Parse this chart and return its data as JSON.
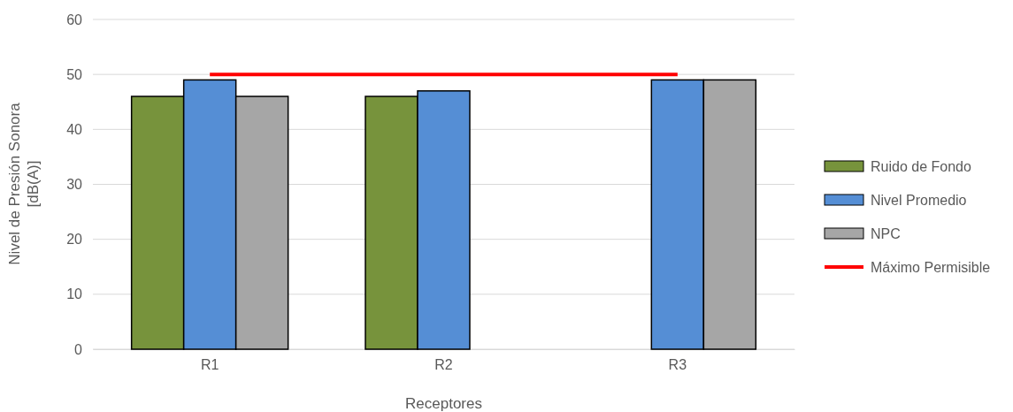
{
  "chart_data": {
    "type": "bar",
    "xlabel": "Receptores",
    "ylabel": "Nivel de Presión Sonora [dB(A)]",
    "categories": [
      "R1",
      "R2",
      "R3"
    ],
    "series": [
      {
        "name": "Ruido de Fondo",
        "color": "#77933c",
        "values": [
          46,
          46,
          null
        ]
      },
      {
        "name": "Nivel Promedio",
        "color": "#558ed5",
        "values": [
          49,
          47,
          49
        ]
      },
      {
        "name": "NPC",
        "color": "#a6a6a6",
        "values": [
          46,
          null,
          49
        ]
      },
      {
        "name": "Máximo Permisible",
        "color": "#ff0000",
        "type": "line",
        "values": [
          50,
          50,
          50
        ]
      }
    ],
    "ylim": [
      0,
      60
    ],
    "yticks": [
      0,
      10,
      20,
      30,
      40,
      50,
      60
    ],
    "grid": "y",
    "legend": "right",
    "marker": "none",
    "line_style": "solid"
  }
}
